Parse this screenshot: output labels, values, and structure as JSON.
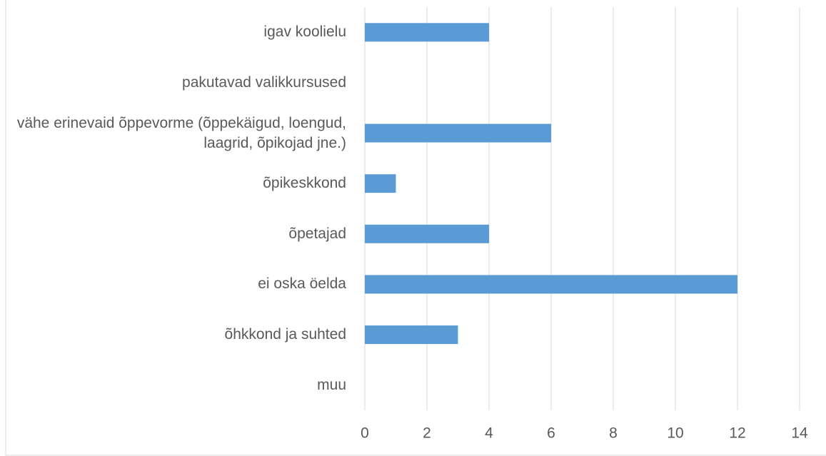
{
  "chart_data": {
    "type": "bar",
    "orientation": "horizontal",
    "categories": [
      "igav koolielu",
      "pakutavad valikkursused",
      "vähe erinevaid õppevorme (õppekäigud, loengud, laagrid, õpikojad jne.)",
      "õpikeskkond",
      "õpetajad",
      "ei oska öelda",
      "õhkkond ja suhted",
      "muu"
    ],
    "values": [
      4,
      0,
      6,
      1,
      4,
      12,
      3,
      0
    ],
    "color": "#5b9bd5",
    "xlim": [
      0,
      14
    ],
    "xticks": [
      0,
      2,
      4,
      6,
      8,
      10,
      12,
      14
    ],
    "grid": true
  }
}
